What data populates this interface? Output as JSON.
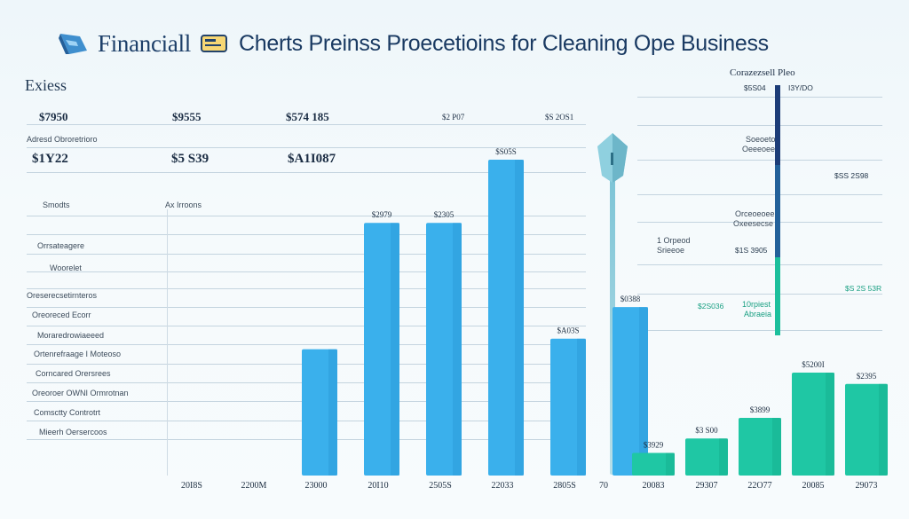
{
  "header": {
    "title_a": "Financiall",
    "title_b": "Cherts Preinss Proecetioins for Cleaning Ope Business"
  },
  "left_panel": {
    "section": "Exiess",
    "row1": [
      "$7950",
      "$9555",
      "$574 185",
      "$2 P07",
      "$S 2OS1"
    ],
    "row1_note": "Adresd Obroretrioro",
    "row2": [
      "$1Y22",
      "$5 S39",
      "$A1I087"
    ],
    "sub_headers": [
      "Smodts",
      "Ax Irroons"
    ],
    "row_labels": [
      "Orrsateagere",
      "Woorelet",
      "Oreserecsetirnteros",
      "Oreoreced Ecorr",
      "Moraredrowiaeeed",
      "Ortenrefraage I Moteoso",
      "Corncared Orersrees",
      "Oreoroer OWNI Ormrotnan",
      "Comsctty Controtrt",
      "Mieerh Oersercoos"
    ]
  },
  "right_panel": {
    "title": "Corazezsell Pleo",
    "tag_a": "$5S04",
    "tag_b": "I3Y/DO",
    "labels": [
      {
        "key": "a",
        "text": "Soeoeto"
      },
      {
        "key": "b",
        "text": "Oeeeoee"
      },
      {
        "key": "c",
        "text": "$SS 2S98"
      },
      {
        "key": "d",
        "text": "Orceoeoee"
      },
      {
        "key": "e",
        "text": "Oxeesecse"
      },
      {
        "key": "f",
        "text": "1 Orpeod"
      },
      {
        "key": "g",
        "text": "Srieeoe"
      },
      {
        "key": "h",
        "text": "$1S 3905"
      },
      {
        "key": "i",
        "text": "$S 2S 53R"
      },
      {
        "key": "j",
        "text": "$2S036"
      },
      {
        "key": "k",
        "text": "10rpiest"
      },
      {
        "key": "l",
        "text": "Abraeia"
      }
    ]
  },
  "chart_data": [
    {
      "type": "bar",
      "title": "",
      "categories": [
        "20I8S",
        "2200M",
        "23000",
        "20I10",
        "2505S",
        "22033",
        "2805S"
      ],
      "series": [
        {
          "values": [
            null,
            12,
            24,
            24,
            30,
            13,
            16
          ]
        }
      ],
      "data_labels": [
        "",
        "",
        "$2979",
        "$2305",
        "$S05S",
        "$A03S",
        "$0388"
      ],
      "color": "#3ab0ec"
    },
    {
      "type": "bar",
      "title": "",
      "categories": [
        "20083",
        "29307",
        "22O77",
        "20085",
        "29073"
      ],
      "extra_tick": "70",
      "series": [
        {
          "values": [
            2.2,
            3.6,
            5.6,
            10,
            8.9
          ]
        }
      ],
      "data_labels": [
        "$3929",
        "$3 S00",
        "$3899",
        "$5200I",
        "$2395"
      ],
      "color": "#1fc7a4"
    }
  ]
}
